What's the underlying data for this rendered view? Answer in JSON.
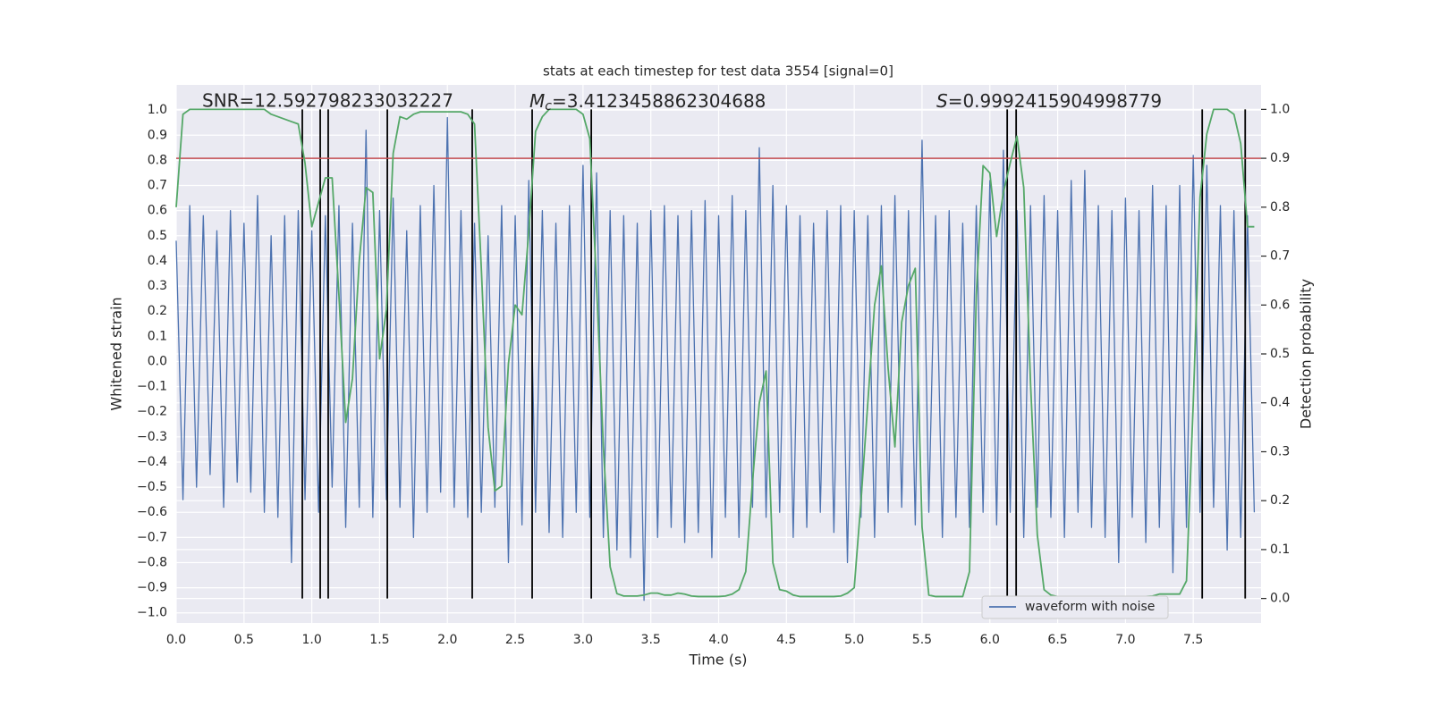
{
  "chart_data": {
    "type": "line",
    "title": "stats at each timestep for test data 3554 [signal=0]",
    "xlabel": "Time (s)",
    "ylabel": "Whitened strain",
    "y2label": "Detection probability",
    "annotations": [
      {
        "text": "SNR=12.592798233032227"
      },
      {
        "symbol": "M",
        "subscript": "c",
        "text": "=3.4123458862304688"
      },
      {
        "symbol": "S",
        "text": "=0.9992415904998779"
      }
    ],
    "xlim": [
      0,
      8
    ],
    "ylim": [
      -1.04,
      1.1
    ],
    "y2lim": [
      -0.05,
      1.05
    ],
    "xticks": [
      {
        "value": 0,
        "label": "0.0"
      },
      {
        "value": 0.5,
        "label": "0.5"
      },
      {
        "value": 1,
        "label": "1.0"
      },
      {
        "value": 1.5,
        "label": "1.5"
      },
      {
        "value": 2,
        "label": "2.0"
      },
      {
        "value": 2.5,
        "label": "2.5"
      },
      {
        "value": 3,
        "label": "3.0"
      },
      {
        "value": 3.5,
        "label": "3.5"
      },
      {
        "value": 4,
        "label": "4.0"
      },
      {
        "value": 4.5,
        "label": "4.5"
      },
      {
        "value": 5,
        "label": "5.0"
      },
      {
        "value": 5.5,
        "label": "5.5"
      },
      {
        "value": 6,
        "label": "6.0"
      },
      {
        "value": 6.5,
        "label": "6.5"
      },
      {
        "value": 7,
        "label": "7.0"
      },
      {
        "value": 7.5,
        "label": "7.5"
      }
    ],
    "yticks": [
      {
        "value": -1,
        "label": "−1.0"
      },
      {
        "value": -0.9,
        "label": "−0.9"
      },
      {
        "value": -0.8,
        "label": "−0.8"
      },
      {
        "value": -0.7,
        "label": "−0.7"
      },
      {
        "value": -0.6,
        "label": "−0.6"
      },
      {
        "value": -0.5,
        "label": "−0.5"
      },
      {
        "value": -0.4,
        "label": "−0.4"
      },
      {
        "value": -0.3,
        "label": "−0.3"
      },
      {
        "value": -0.2,
        "label": "−0.2"
      },
      {
        "value": -0.1,
        "label": "−0.1"
      },
      {
        "value": 0,
        "label": "0.0"
      },
      {
        "value": 0.1,
        "label": "0.1"
      },
      {
        "value": 0.2,
        "label": "0.2"
      },
      {
        "value": 0.3,
        "label": "0.3"
      },
      {
        "value": 0.4,
        "label": "0.4"
      },
      {
        "value": 0.5,
        "label": "0.5"
      },
      {
        "value": 0.6,
        "label": "0.6"
      },
      {
        "value": 0.7,
        "label": "0.7"
      },
      {
        "value": 0.8,
        "label": "0.8"
      },
      {
        "value": 0.9,
        "label": "0.9"
      },
      {
        "value": 1,
        "label": "1.0"
      }
    ],
    "y2ticks": [
      {
        "value": 0,
        "label": "0.0"
      },
      {
        "value": 0.1,
        "label": "0.1"
      },
      {
        "value": 0.2,
        "label": "0.2"
      },
      {
        "value": 0.3,
        "label": "0.3"
      },
      {
        "value": 0.4,
        "label": "0.4"
      },
      {
        "value": 0.5,
        "label": "0.5"
      },
      {
        "value": 0.6,
        "label": "0.6"
      },
      {
        "value": 0.7,
        "label": "0.7"
      },
      {
        "value": 0.8,
        "label": "0.8"
      },
      {
        "value": 0.9,
        "label": "0.9"
      },
      {
        "value": 1,
        "label": "1.0"
      }
    ],
    "grid": true,
    "legend": "lower right",
    "hlines": [
      {
        "value": 0.9,
        "axis": "y2",
        "color": "#c44e52"
      }
    ],
    "vlines": {
      "x": [
        0.93,
        1.062,
        1.121,
        1.557,
        2.183,
        2.625,
        3.061,
        6.128,
        6.194,
        7.566,
        7.883
      ],
      "ymin": 0,
      "ymax": 1,
      "axis": "y2",
      "color": "#000000"
    },
    "x": [
      0,
      0.05,
      0.1,
      0.15,
      0.2,
      0.25,
      0.3,
      0.35,
      0.4,
      0.45,
      0.5,
      0.55,
      0.6,
      0.65,
      0.7,
      0.75,
      0.8,
      0.85,
      0.9,
      0.95,
      1,
      1.05,
      1.1,
      1.15,
      1.2,
      1.25,
      1.3,
      1.35,
      1.4,
      1.45,
      1.5,
      1.55,
      1.6,
      1.65,
      1.7,
      1.75,
      1.8,
      1.85,
      1.9,
      1.95,
      2,
      2.05,
      2.1,
      2.15,
      2.2,
      2.25,
      2.3,
      2.35,
      2.4,
      2.45,
      2.5,
      2.55,
      2.6,
      2.65,
      2.7,
      2.75,
      2.8,
      2.85,
      2.9,
      2.95,
      3,
      3.05,
      3.1,
      3.15,
      3.2,
      3.25,
      3.3,
      3.35,
      3.4,
      3.45,
      3.5,
      3.55,
      3.6,
      3.65,
      3.7,
      3.75,
      3.8,
      3.85,
      3.9,
      3.95,
      4,
      4.05,
      4.1,
      4.15,
      4.2,
      4.25,
      4.3,
      4.35,
      4.4,
      4.45,
      4.5,
      4.55,
      4.6,
      4.65,
      4.7,
      4.75,
      4.8,
      4.85,
      4.9,
      4.95,
      5,
      5.05,
      5.1,
      5.15,
      5.2,
      5.25,
      5.3,
      5.35,
      5.4,
      5.45,
      5.5,
      5.55,
      5.6,
      5.65,
      5.7,
      5.75,
      5.8,
      5.85,
      5.9,
      5.95,
      6,
      6.05,
      6.1,
      6.15,
      6.2,
      6.25,
      6.3,
      6.35,
      6.4,
      6.45,
      6.5,
      6.55,
      6.6,
      6.65,
      6.7,
      6.75,
      6.8,
      6.85,
      6.9,
      6.95,
      7,
      7.05,
      7.1,
      7.15,
      7.2,
      7.25,
      7.3,
      7.35,
      7.4,
      7.45,
      7.5,
      7.55,
      7.6,
      7.65,
      7.7,
      7.75,
      7.8,
      7.85,
      7.9,
      7.95
    ],
    "series": [
      {
        "name": "waveform with noise",
        "color": "#4c72b0",
        "values": [
          0.48,
          -0.55,
          0.62,
          -0.5,
          0.58,
          -0.45,
          0.52,
          -0.58,
          0.6,
          -0.48,
          0.55,
          -0.52,
          0.66,
          -0.6,
          0.5,
          -0.62,
          0.58,
          -0.8,
          0.6,
          -0.55,
          0.52,
          -0.6,
          0.58,
          -0.5,
          0.62,
          -0.66,
          0.55,
          -0.58,
          0.92,
          -0.62,
          0.6,
          -0.55,
          0.65,
          -0.58,
          0.52,
          -0.7,
          0.62,
          -0.6,
          0.7,
          -0.52,
          0.97,
          -0.58,
          0.6,
          -0.62,
          0.55,
          -0.6,
          0.5,
          -0.58,
          0.62,
          -0.8,
          0.58,
          -0.65,
          0.72,
          -0.6,
          0.6,
          -0.68,
          0.55,
          -0.7,
          0.62,
          -0.6,
          0.78,
          -0.62,
          0.75,
          -0.7,
          0.6,
          -0.75,
          0.58,
          -0.78,
          0.55,
          -0.95,
          0.6,
          -0.7,
          0.62,
          -0.66,
          0.58,
          -0.72,
          0.6,
          -0.68,
          0.64,
          -0.78,
          0.58,
          -0.62,
          0.66,
          -0.7,
          0.6,
          -0.58,
          0.85,
          -0.62,
          0.7,
          -0.6,
          0.62,
          -0.7,
          0.58,
          -0.66,
          0.55,
          -0.6,
          0.6,
          -0.68,
          0.62,
          -0.8,
          0.6,
          -0.62,
          0.58,
          -0.7,
          0.62,
          -0.6,
          0.66,
          -0.58,
          0.6,
          -0.65,
          0.88,
          -0.6,
          0.58,
          -0.7,
          0.6,
          -0.62,
          0.55,
          -0.66,
          0.62,
          -0.6,
          0.72,
          -0.65,
          0.84,
          -0.6,
          0.6,
          -0.7,
          0.62,
          -0.58,
          0.66,
          -0.62,
          0.6,
          -0.7,
          0.72,
          -0.6,
          0.76,
          -0.66,
          0.62,
          -0.7,
          0.6,
          -0.8,
          0.65,
          -0.62,
          0.6,
          -0.72,
          0.7,
          -0.66,
          0.62,
          -0.84,
          0.7,
          -0.66,
          0.82,
          -0.6,
          0.78,
          -0.58,
          0.62,
          -0.75,
          0.6,
          -0.7,
          0.58,
          -0.6
        ]
      },
      {
        "color": "#55a868",
        "axis": "y2",
        "values": [
          0.8,
          0.99,
          1,
          1,
          1,
          1,
          1,
          1,
          1,
          1,
          1,
          1,
          1,
          1,
          0.99,
          0.985,
          0.98,
          0.975,
          0.97,
          0.89,
          0.76,
          0.81,
          0.86,
          0.86,
          0.62,
          0.36,
          0.45,
          0.69,
          0.84,
          0.83,
          0.49,
          0.59,
          0.91,
          0.985,
          0.98,
          0.99,
          0.995,
          0.995,
          0.995,
          0.995,
          0.995,
          0.995,
          0.995,
          0.99,
          0.97,
          0.675,
          0.35,
          0.22,
          0.23,
          0.48,
          0.6,
          0.58,
          0.75,
          0.955,
          0.985,
          1,
          1,
          1,
          1,
          1,
          0.99,
          0.94,
          0.64,
          0.31,
          0.065,
          0.01,
          0.005,
          0.005,
          0.005,
          0.007,
          0.011,
          0.011,
          0.007,
          0.007,
          0.011,
          0.009,
          0.005,
          0.004,
          0.004,
          0.004,
          0.004,
          0.005,
          0.009,
          0.018,
          0.055,
          0.24,
          0.4,
          0.465,
          0.073,
          0.018,
          0.015,
          0.007,
          0.004,
          0.004,
          0.004,
          0.004,
          0.004,
          0.004,
          0.005,
          0.011,
          0.022,
          0.2,
          0.4,
          0.6,
          0.68,
          0.47,
          0.31,
          0.565,
          0.64,
          0.675,
          0.146,
          0.007,
          0.004,
          0.004,
          0.004,
          0.004,
          0.004,
          0.055,
          0.62,
          0.885,
          0.87,
          0.74,
          0.83,
          0.89,
          0.945,
          0.84,
          0.44,
          0.13,
          0.018,
          0.007,
          0.004,
          0.004,
          0.004,
          0.004,
          0.004,
          0.004,
          0.004,
          0.004,
          0.004,
          0.004,
          0.004,
          0.004,
          0.004,
          0.004,
          0.005,
          0.009,
          0.009,
          0.009,
          0.009,
          0.036,
          0.4,
          0.82,
          0.95,
          1,
          1,
          1,
          0.99,
          0.93,
          0.76,
          0.76
        ]
      }
    ]
  }
}
